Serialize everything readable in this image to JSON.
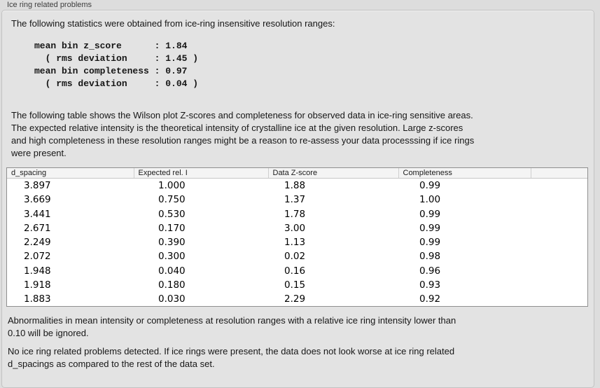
{
  "colors": {
    "page_bg": "#dddddd",
    "panel_bg": "#e3e3e3",
    "panel_border": "#c2c2c2",
    "table_bg": "#ffffff",
    "table_border": "#8f8f8f",
    "header_bg": "#f4f4f4"
  },
  "groupbox": {
    "title": "Ice ring related problems"
  },
  "content": {
    "intro": "The following statistics were obtained from ice-ring insensitive resolution ranges:",
    "stats_lines": [
      "mean bin z_score      : 1.84",
      "  ( rms deviation     : 1.45 )",
      "mean bin completeness : 0.97",
      "  ( rms deviation     : 0.04 )"
    ],
    "table_description_lines": [
      "The following table shows the Wilson plot Z-scores and completeness for observed data in ice-ring sensitive areas.",
      "The expected relative intensity is the theoretical intensity of crystalline ice at the given resolution. Large z-scores",
      "and high completeness in these resolution ranges might be a reason to re-assess your data processsing if ice rings",
      "were present."
    ],
    "ignore_note_lines": [
      "Abnormalities in mean intensity or completeness at resolution ranges with a relative ice ring intensity lower than",
      "0.10 will be ignored."
    ],
    "conclusion_lines": [
      "No ice ring related problems detected. If ice rings were present, the data does not look worse at ice ring related",
      "d_spacings as compared to the rest of the data set."
    ]
  },
  "table": {
    "headers": [
      "d_spacing",
      "Expected rel. I",
      "Data Z-score",
      "Completeness",
      ""
    ],
    "rows": [
      [
        "3.897",
        "1.000",
        "1.88",
        "0.99"
      ],
      [
        "3.669",
        "0.750",
        "1.37",
        "1.00"
      ],
      [
        "3.441",
        "0.530",
        "1.78",
        "0.99"
      ],
      [
        "2.671",
        "0.170",
        "3.00",
        "0.99"
      ],
      [
        "2.249",
        "0.390",
        "1.13",
        "0.99"
      ],
      [
        "2.072",
        "0.300",
        "0.02",
        "0.98"
      ],
      [
        "1.948",
        "0.040",
        "0.16",
        "0.96"
      ],
      [
        "1.918",
        "0.180",
        "0.15",
        "0.93"
      ],
      [
        "1.883",
        "0.030",
        "2.29",
        "0.92"
      ]
    ]
  }
}
